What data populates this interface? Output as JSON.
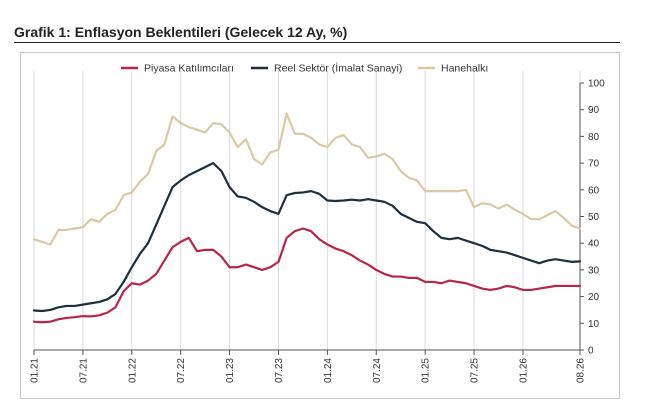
{
  "header": {
    "title": "Grafik 1: Enflasyon Beklentileri (Gelecek 12 Ay, %)"
  },
  "chart_data": {
    "type": "line",
    "title": "Grafik 1: Enflasyon Beklentileri (Gelecek 12 Ay, %)",
    "xlabel": "",
    "ylabel": "",
    "ylim": [
      0,
      100
    ],
    "y_ticks": [
      0,
      10,
      20,
      30,
      40,
      50,
      60,
      70,
      80,
      90,
      100
    ],
    "y_axis_position": "right",
    "grid": "vertical at year ticks",
    "legend_position": "top",
    "x_start": "01.21",
    "x_end": "08.26",
    "x_tick_labels": [
      "01.21",
      "07.21",
      "01.22",
      "07.22",
      "01.23",
      "07.23",
      "01.24",
      "07.24",
      "01.25",
      "07.25",
      "01.26",
      "08.26"
    ],
    "series": [
      {
        "name": "Piyasa Katılımcıları",
        "color": "#b8254b",
        "values": [
          10.6,
          10.4,
          10.6,
          11.5,
          12.0,
          12.3,
          12.7,
          12.6,
          13.0,
          14.0,
          16.0,
          22.0,
          25.0,
          24.5,
          26.0,
          28.5,
          33.5,
          38.5,
          40.5,
          42.0,
          37.0,
          37.5,
          37.5,
          35.0,
          31.0,
          31.0,
          32.0,
          31.0,
          30.0,
          31.0,
          33.0,
          42.0,
          44.5,
          45.5,
          44.5,
          41.5,
          39.5,
          38.0,
          37.0,
          35.5,
          33.5,
          32.0,
          30.0,
          28.5,
          27.5,
          27.5,
          27.0,
          27.0,
          25.5,
          25.5,
          25.0,
          26.0,
          25.5,
          25.0,
          24.0,
          23.0,
          22.5,
          23.0,
          24.0,
          23.5,
          22.5,
          22.5,
          23.0,
          23.5,
          24.0,
          24.0,
          24.0,
          24.0
        ]
      },
      {
        "name": "Reel Sektör (İmalat Sanayi)",
        "color": "#1f2f3f",
        "values": [
          14.8,
          14.6,
          15.0,
          16.0,
          16.5,
          16.5,
          17.0,
          17.5,
          18.0,
          19.0,
          21.0,
          25.5,
          31.0,
          36.0,
          40.0,
          47.0,
          54.0,
          61.0,
          63.5,
          65.5,
          67.0,
          68.5,
          70.0,
          67.0,
          61.0,
          57.5,
          57.0,
          55.5,
          53.5,
          52.0,
          51.0,
          58.0,
          58.8,
          59.0,
          59.5,
          58.5,
          56.0,
          55.8,
          56.0,
          56.3,
          56.0,
          56.5,
          56.0,
          55.5,
          54.0,
          51.0,
          49.5,
          48.0,
          47.5,
          44.5,
          42.0,
          41.5,
          42.0,
          41.0,
          40.0,
          39.0,
          37.5,
          37.0,
          36.5,
          35.5,
          34.5,
          33.5,
          32.5,
          33.5,
          34.0,
          33.5,
          33.0,
          33.2
        ]
      },
      {
        "name": "Hanehalkı",
        "color": "#dcc8a4",
        "values": [
          41.5,
          40.5,
          39.5,
          45.0,
          45.0,
          45.5,
          46.0,
          49.0,
          48.0,
          51.0,
          52.5,
          58.0,
          59.0,
          63.0,
          66.0,
          74.5,
          77.0,
          87.5,
          85.0,
          83.5,
          82.5,
          81.5,
          85.0,
          84.5,
          81.5,
          76.0,
          79.0,
          71.5,
          69.5,
          74.0,
          75.0,
          88.5,
          81.0,
          81.0,
          79.5,
          77.0,
          76.0,
          79.5,
          80.5,
          77.0,
          76.0,
          72.0,
          72.5,
          73.5,
          71.5,
          67.0,
          64.5,
          63.5,
          59.5,
          59.5,
          59.5,
          59.5,
          59.5,
          60.0,
          53.5,
          55.0,
          54.5,
          53.0,
          54.5,
          52.5,
          51.0,
          49.0,
          49.0,
          50.5,
          52.0,
          49.5,
          46.5,
          45.5
        ]
      }
    ]
  }
}
